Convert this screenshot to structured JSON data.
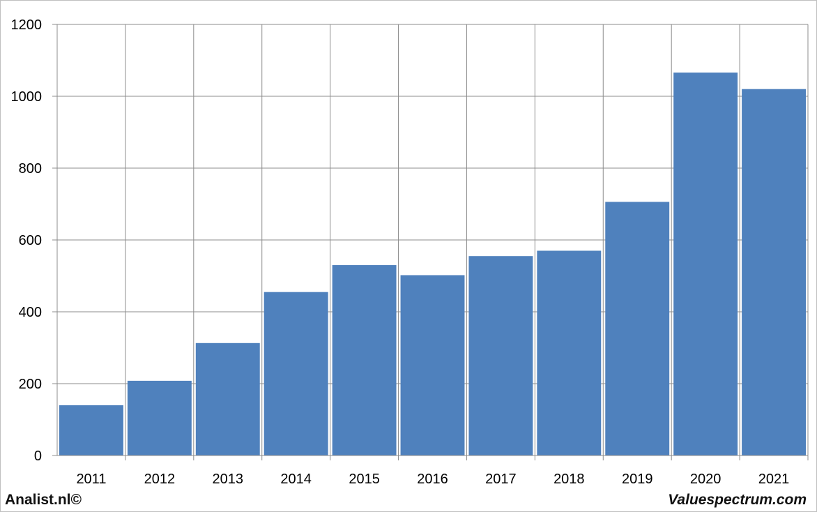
{
  "chart_data": {
    "type": "bar",
    "categories": [
      "2011",
      "2012",
      "2013",
      "2014",
      "2015",
      "2016",
      "2017",
      "2018",
      "2019",
      "2020",
      "2021"
    ],
    "series": [
      {
        "values": [
          140,
          208,
          313,
          455,
          530,
          502,
          555,
          570,
          706,
          1066,
          1020
        ]
      }
    ],
    "yticks": [
      "0",
      "200",
      "400",
      "600",
      "800",
      "1000",
      "1200"
    ],
    "ylim": [
      0,
      1200
    ],
    "grid": true,
    "bar_color": "#4f81bd",
    "grid_color": "#8c8c8c"
  },
  "footer": {
    "left": "Analist.nl©",
    "right": "Valuespectrum.com"
  }
}
